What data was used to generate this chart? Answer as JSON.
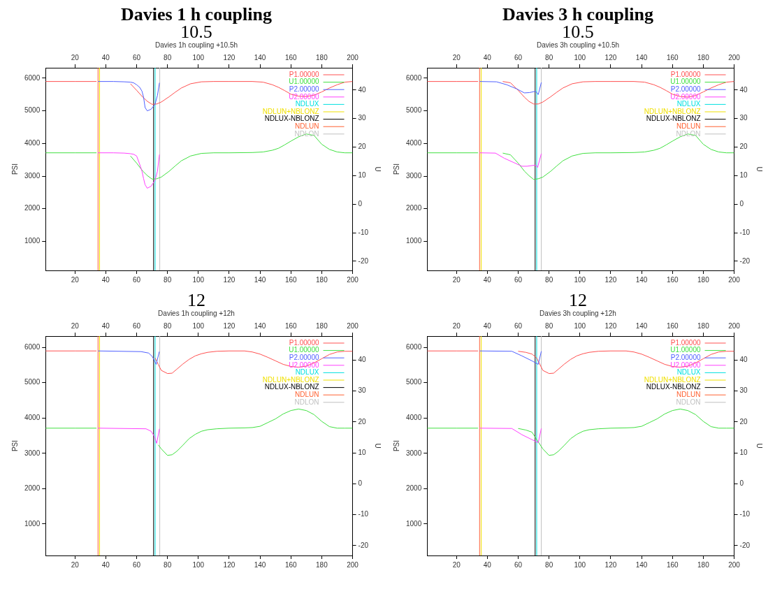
{
  "chart_data": [
    {
      "type": "line",
      "annotations": [
        "Davies 1 h coupling"
      ],
      "title": "10.5",
      "subtitle": "Davies 1h coupling +10.5h",
      "ylabel": "PSI",
      "y2label": "U",
      "xlim": [
        1,
        200
      ],
      "xticks": [
        20,
        40,
        60,
        80,
        100,
        120,
        140,
        160,
        180,
        200
      ],
      "x2lim": [
        1,
        200
      ],
      "x2ticks": [
        20,
        40,
        60,
        80,
        100,
        120,
        140,
        160,
        180,
        200
      ],
      "ylim": [
        110,
        6320
      ],
      "yticks": [
        1000,
        2000,
        3000,
        4000,
        5000,
        6000
      ],
      "y2lim": [
        -23.2,
        47.8
      ],
      "y2ticks": [
        -20,
        -10,
        0,
        10,
        20,
        30,
        40
      ],
      "legend": "top right",
      "x": [
        1,
        20,
        34,
        45,
        56,
        60,
        64,
        67,
        70,
        73,
        76,
        81,
        85,
        89,
        95,
        102,
        110,
        120,
        135,
        142,
        148,
        152,
        156,
        160,
        165,
        170,
        175,
        180,
        185,
        190,
        195,
        200
      ],
      "series": [
        {
          "name": "P1.00000",
          "color": "#ff5050",
          "values": [
            5900,
            5900,
            5900,
            null,
            5830,
            5630,
            5420,
            5290,
            5200,
            5210,
            5270,
            5430,
            5570,
            5700,
            5830,
            5890,
            5900,
            5900,
            5900,
            5880,
            5800,
            5720,
            5620,
            5510,
            5450,
            5440,
            5480,
            5580,
            5700,
            5800,
            5880,
            5900
          ]
        },
        {
          "name": "U1.00000",
          "color": "#40e040",
          "axis": "y2",
          "values": [
            18,
            18,
            18,
            null,
            16.9,
            14.4,
            11.6,
            10,
            8.8,
            8.9,
            9.5,
            11.5,
            13.4,
            15.2,
            16.9,
            17.8,
            18,
            18,
            18.1,
            18.3,
            18.9,
            19.6,
            20.8,
            22.1,
            23.6,
            24.6,
            24.1,
            21,
            19.2,
            18.3,
            18,
            18
          ]
        },
        {
          "name": "P2.00000",
          "color": "#5060ff",
          "x": [
            35,
            45,
            52,
            56,
            58,
            60,
            62,
            63.5,
            64.5,
            65.5,
            66.9,
            69.4,
            71.9,
            73.5,
            74.8
          ],
          "values": [
            5900,
            5900,
            5890,
            5880,
            5860,
            5800,
            5720,
            5600,
            5420,
            5100,
            5000,
            5050,
            5200,
            5470,
            5860
          ]
        },
        {
          "name": "U2.00000",
          "color": "#ff40ff",
          "axis": "y2",
          "x": [
            35,
            45,
            52,
            56,
            58,
            60,
            62,
            63.5,
            64.5,
            65.5,
            66.9,
            69.4,
            71.9,
            73.5,
            74.8
          ],
          "values": [
            18,
            18,
            17.9,
            17.7,
            17.5,
            16.9,
            14,
            11.5,
            9,
            6.8,
            5.6,
            6.3,
            8.4,
            11.5,
            17.4
          ]
        }
      ],
      "ref_lines": [
        {
          "axis": "x",
          "value": 72,
          "label": "NDLUX",
          "color": "#00e0e0"
        },
        {
          "axis": "x",
          "value": 36,
          "label": "NDLUN+NBLONZ",
          "color": "#f0e000"
        },
        {
          "axis": "x",
          "value": 71,
          "label": "NDLUX-NBLONZ",
          "color": "#000000"
        },
        {
          "axis": "x",
          "value": 35,
          "label": "NDLUN",
          "color": "#ff6030"
        },
        {
          "axis": "x",
          "value": 75,
          "label": "NDLON",
          "color": "#c0c0c0"
        }
      ]
    },
    {
      "type": "line",
      "annotations": [
        "Davies 3 h coupling"
      ],
      "title": "10.5",
      "subtitle": "Davies 3h coupling +10.5h",
      "ylabel": "PSI",
      "y2label": "U",
      "xlim": [
        1,
        200
      ],
      "xticks": [
        20,
        40,
        60,
        80,
        100,
        120,
        140,
        160,
        180,
        200
      ],
      "x2lim": [
        1,
        200
      ],
      "x2ticks": [
        20,
        40,
        60,
        80,
        100,
        120,
        140,
        160,
        180,
        200
      ],
      "ylim": [
        110,
        6320
      ],
      "yticks": [
        1000,
        2000,
        3000,
        4000,
        5000,
        6000
      ],
      "y2lim": [
        -23.2,
        47.8
      ],
      "y2ticks": [
        -20,
        -10,
        0,
        10,
        20,
        30,
        40
      ],
      "legend": "top right",
      "x": [
        1,
        20,
        34,
        42,
        50,
        55,
        60,
        64,
        67,
        70,
        73,
        76,
        81,
        85,
        89,
        95,
        102,
        110,
        120,
        135,
        142,
        148,
        152,
        156,
        160,
        165,
        170,
        175,
        180,
        185,
        190,
        195,
        200
      ],
      "series": [
        {
          "name": "P1.00000",
          "color": "#ff5050",
          "values": [
            5900,
            5900,
            5900,
            null,
            5900,
            5860,
            5630,
            5420,
            5290,
            5210,
            5210,
            5270,
            5430,
            5570,
            5700,
            5830,
            5890,
            5900,
            5900,
            5900,
            5880,
            5800,
            5720,
            5620,
            5510,
            5440,
            5420,
            5470,
            5580,
            5700,
            5800,
            5880,
            5900
          ]
        },
        {
          "name": "U1.00000",
          "color": "#40e040",
          "axis": "y2",
          "values": [
            18,
            18,
            18,
            null,
            17.9,
            17.3,
            14.4,
            11.6,
            10,
            8.7,
            8.9,
            9.5,
            11.5,
            13.4,
            15.2,
            16.9,
            17.8,
            18,
            18,
            18.1,
            18.3,
            18.9,
            19.6,
            20.8,
            22.1,
            23.6,
            24.6,
            24.1,
            21,
            19.2,
            18.3,
            18,
            18
          ]
        },
        {
          "name": "P2.00000",
          "color": "#5060ff",
          "x": [
            35,
            46,
            52.6,
            59.2,
            64,
            67.3,
            71.3,
            73,
            75
          ],
          "values": [
            5900,
            5890,
            5800,
            5670,
            5550,
            5560,
            5600,
            5500,
            5870
          ]
        },
        {
          "name": "U2.00000",
          "color": "#ff40ff",
          "axis": "y2",
          "x": [
            35,
            45.3,
            51,
            57.5,
            62.4,
            65.7,
            71.3,
            72.6,
            75
          ],
          "values": [
            18,
            17.9,
            16.1,
            14.5,
            13.3,
            13.3,
            13.7,
            12.9,
            17.7
          ]
        }
      ],
      "ref_lines": [
        {
          "axis": "x",
          "value": 72,
          "label": "NDLUX",
          "color": "#00e0e0"
        },
        {
          "axis": "x",
          "value": 36,
          "label": "NDLUN+NBLONZ",
          "color": "#f0e000"
        },
        {
          "axis": "x",
          "value": 71,
          "label": "NDLUX-NBLONZ",
          "color": "#000000"
        },
        {
          "axis": "x",
          "value": 35,
          "label": "NDLUN",
          "color": "#ff6030"
        },
        {
          "axis": "x",
          "value": 75,
          "label": "NDLON",
          "color": "#c0c0c0"
        }
      ]
    },
    {
      "type": "line",
      "title": "12",
      "subtitle": "Davies 1h coupling +12h",
      "ylabel": "PSI",
      "y2label": "U",
      "xlim": [
        1,
        200
      ],
      "xticks": [
        20,
        40,
        60,
        80,
        100,
        120,
        140,
        160,
        180,
        200
      ],
      "x2lim": [
        1,
        200
      ],
      "x2ticks": [
        20,
        40,
        60,
        80,
        100,
        120,
        140,
        160,
        180,
        200
      ],
      "ylim": [
        110,
        6320
      ],
      "yticks": [
        1000,
        2000,
        3000,
        4000,
        5000,
        6000
      ],
      "y2lim": [
        -23.2,
        47.8
      ],
      "y2ticks": [
        -20,
        -10,
        0,
        10,
        20,
        30,
        40
      ],
      "legend": "top right",
      "x": [
        1,
        20,
        34,
        50,
        72,
        74,
        76,
        80,
        83,
        86,
        90,
        94,
        98,
        102,
        106,
        112,
        120,
        130,
        135,
        140,
        145,
        150,
        155,
        160,
        165,
        170,
        175,
        180,
        185,
        190,
        195,
        200
      ],
      "series": [
        {
          "name": "P1.00000",
          "color": "#ff5050",
          "values": [
            5900,
            5900,
            5900,
            null,
            5700,
            5520,
            5350,
            5260,
            5270,
            5380,
            5530,
            5660,
            5760,
            5820,
            5860,
            5890,
            5900,
            5900,
            5870,
            5810,
            5720,
            5620,
            5520,
            5460,
            5440,
            5470,
            5560,
            5680,
            5800,
            5870,
            5890,
            5890
          ]
        },
        {
          "name": "U1.00000",
          "color": "#40e040",
          "axis": "y2",
          "values": [
            18,
            18,
            18,
            null,
            null,
            12.6,
            11.3,
            9.2,
            9.4,
            10.5,
            12.5,
            14.6,
            16,
            17,
            17.5,
            17.8,
            18,
            18.1,
            18.2,
            18.6,
            19.8,
            21,
            22.6,
            23.7,
            24.2,
            23.7,
            22.4,
            20.2,
            18.5,
            18,
            18,
            18
          ]
        },
        {
          "name": "P2.00000",
          "color": "#5060ff",
          "x": [
            35,
            62.9,
            67.8,
            70.2,
            72.7,
            74.7
          ],
          "values": [
            5900,
            5880,
            5840,
            5740,
            5520,
            5880
          ]
        },
        {
          "name": "U2.00000",
          "color": "#ff40ff",
          "axis": "y2",
          "x": [
            35,
            66.1,
            69.4,
            71.4,
            73,
            74.8
          ],
          "values": [
            18,
            17.8,
            17,
            15.4,
            13.1,
            17.8
          ]
        }
      ],
      "ref_lines": [
        {
          "axis": "x",
          "value": 72,
          "label": "NDLUX",
          "color": "#00e0e0"
        },
        {
          "axis": "x",
          "value": 36,
          "label": "NDLUN+NBLONZ",
          "color": "#f0e000"
        },
        {
          "axis": "x",
          "value": 71,
          "label": "NDLUX-NBLONZ",
          "color": "#000000"
        },
        {
          "axis": "x",
          "value": 35,
          "label": "NDLUN",
          "color": "#ff6030"
        },
        {
          "axis": "x",
          "value": 75,
          "label": "NDLON",
          "color": "#c0c0c0"
        }
      ]
    },
    {
      "type": "line",
      "title": "12",
      "subtitle": "Davies 3h coupling +12h",
      "ylabel": "PSI",
      "y2label": "U",
      "xlim": [
        1,
        200
      ],
      "xticks": [
        20,
        40,
        60,
        80,
        100,
        120,
        140,
        160,
        180,
        200
      ],
      "x2lim": [
        1,
        200
      ],
      "x2ticks": [
        20,
        40,
        60,
        80,
        100,
        120,
        140,
        160,
        180,
        200
      ],
      "ylim": [
        110,
        6320
      ],
      "yticks": [
        1000,
        2000,
        3000,
        4000,
        5000,
        6000
      ],
      "y2lim": [
        -23.2,
        47.8
      ],
      "y2ticks": [
        -20,
        -10,
        0,
        10,
        20,
        30,
        40
      ],
      "legend": "top right",
      "x": [
        1,
        20,
        34,
        45,
        60,
        65,
        69,
        72,
        76,
        80,
        83,
        86,
        90,
        94,
        98,
        102,
        106,
        112,
        120,
        130,
        135,
        140,
        145,
        150,
        155,
        160,
        165,
        170,
        175,
        180,
        185,
        190,
        195,
        200
      ],
      "series": [
        {
          "name": "P1.00000",
          "color": "#ff5050",
          "values": [
            5900,
            5900,
            5900,
            null,
            5890,
            5860,
            5810,
            5700,
            5350,
            5260,
            5270,
            5380,
            5530,
            5660,
            5760,
            5820,
            5860,
            5890,
            5900,
            5900,
            5870,
            5810,
            5720,
            5620,
            5520,
            5460,
            5440,
            5470,
            5560,
            5680,
            5800,
            5870,
            5890,
            5890
          ]
        },
        {
          "name": "U1.00000",
          "color": "#40e040",
          "axis": "y2",
          "values": [
            18,
            18,
            18,
            null,
            17.9,
            17.4,
            16.7,
            14.3,
            11.3,
            9.2,
            9.4,
            10.5,
            12.5,
            14.6,
            16,
            17,
            17.5,
            17.8,
            18,
            18.1,
            18.2,
            18.6,
            19.8,
            21,
            22.6,
            23.7,
            24.2,
            23.7,
            22.4,
            20.2,
            18.5,
            18,
            18,
            18
          ]
        },
        {
          "name": "P2.00000",
          "color": "#5060ff",
          "x": [
            35,
            55.9,
            62.4,
            68.9,
            73,
            75
          ],
          "values": [
            5900,
            5890,
            5760,
            5620,
            5520,
            5890
          ]
        },
        {
          "name": "U2.00000",
          "color": "#ff40ff",
          "axis": "y2",
          "x": [
            35,
            55.9,
            62.4,
            68.9,
            73,
            75
          ],
          "values": [
            18,
            17.9,
            15.9,
            14.3,
            13.3,
            17.9
          ]
        }
      ],
      "ref_lines": [
        {
          "axis": "x",
          "value": 72,
          "label": "NDLUX",
          "color": "#00e0e0"
        },
        {
          "axis": "x",
          "value": 36,
          "label": "NDLUN+NBLONZ",
          "color": "#f0e000"
        },
        {
          "axis": "x",
          "value": 71,
          "label": "NDLUX-NBLONZ",
          "color": "#000000"
        },
        {
          "axis": "x",
          "value": 35,
          "label": "NDLUN",
          "color": "#ff6030"
        },
        {
          "axis": "x",
          "value": 75,
          "label": "NDLON",
          "color": "#c0c0c0"
        }
      ]
    }
  ]
}
